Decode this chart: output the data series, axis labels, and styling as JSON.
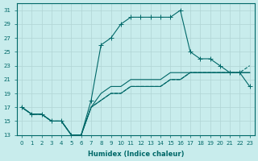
{
  "xlabel": "Humidex (Indice chaleur)",
  "bg_color": "#c8ecec",
  "line_color": "#006868",
  "grid_color": "#b0d4d4",
  "xlim": [
    -0.5,
    23.5
  ],
  "ylim": [
    13,
    32
  ],
  "xticks": [
    0,
    1,
    2,
    3,
    4,
    5,
    6,
    7,
    8,
    9,
    10,
    11,
    12,
    13,
    14,
    15,
    16,
    17,
    18,
    19,
    20,
    21,
    22,
    23
  ],
  "yticks": [
    13,
    15,
    17,
    19,
    21,
    23,
    25,
    27,
    29,
    31
  ],
  "lines": [
    {
      "x": [
        0,
        1,
        2,
        3,
        4,
        5,
        6,
        7,
        8,
        9,
        10,
        11,
        12,
        13,
        14,
        15,
        16,
        17,
        18,
        19,
        20,
        21,
        22,
        23
      ],
      "y": [
        17,
        16,
        16,
        15,
        15,
        13,
        13,
        18,
        26,
        27,
        29,
        30,
        30,
        30,
        30,
        30,
        31,
        25,
        24,
        24,
        23,
        22,
        22,
        20
      ],
      "style": "-",
      "marker": true
    },
    {
      "x": [
        0,
        1,
        2,
        3,
        4,
        5,
        6,
        7,
        8,
        9,
        10,
        11,
        12,
        13,
        14,
        15,
        16,
        17,
        18,
        19,
        20,
        21,
        22,
        23
      ],
      "y": [
        17,
        16,
        16,
        15,
        15,
        13,
        13,
        17,
        19,
        20,
        20,
        21,
        21,
        21,
        21,
        22,
        22,
        22,
        22,
        22,
        22,
        22,
        22,
        22
      ],
      "style": "-",
      "marker": false
    },
    {
      "x": [
        0,
        1,
        2,
        3,
        4,
        5,
        6,
        7,
        8,
        9,
        10,
        11,
        12,
        13,
        14,
        15,
        16,
        17,
        18,
        19,
        20,
        21,
        22,
        23
      ],
      "y": [
        17,
        16,
        16,
        15,
        15,
        13,
        13,
        17,
        18,
        19,
        19,
        20,
        20,
        20,
        20,
        21,
        21,
        22,
        22,
        22,
        22,
        22,
        22,
        22
      ],
      "style": "-",
      "marker": false
    },
    {
      "x": [
        0,
        1,
        2,
        3,
        4,
        5,
        6,
        7,
        8,
        9,
        10,
        11,
        12,
        13,
        14,
        15,
        16,
        17,
        18,
        19,
        20,
        21,
        22,
        23
      ],
      "y": [
        17,
        16,
        16,
        15,
        15,
        13,
        13,
        17,
        18,
        19,
        19,
        20,
        20,
        20,
        20,
        21,
        21,
        22,
        22,
        22,
        22,
        22,
        22,
        23
      ],
      "style": "--",
      "marker": false
    }
  ],
  "markersize": 2.5,
  "linewidth": 0.8,
  "xlabel_fontsize": 6,
  "tick_fontsize": 5
}
